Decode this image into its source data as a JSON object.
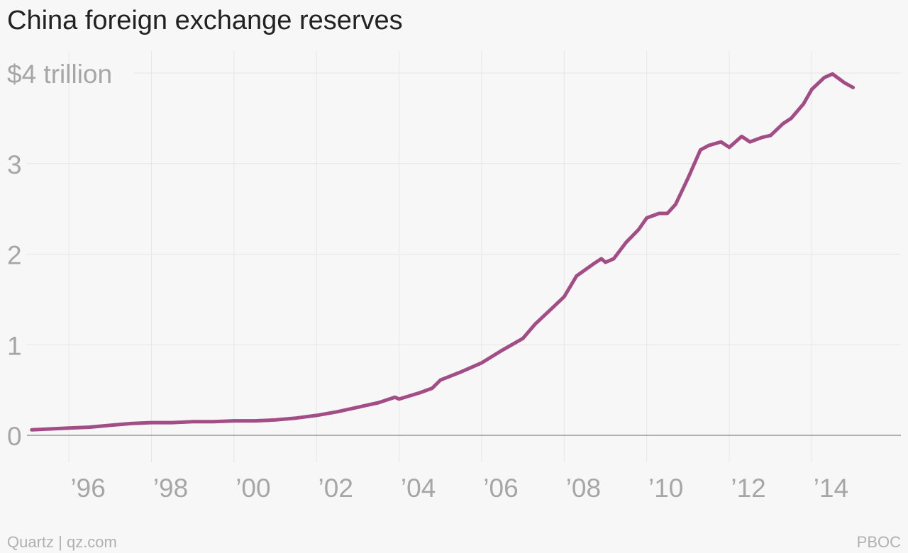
{
  "chart_data": {
    "type": "line",
    "title": "China foreign exchange reserves",
    "xlabel": "",
    "ylabel": "",
    "y_unit_label": "$4 trillion",
    "x_tick_labels": [
      {
        "year": 1996,
        "label": "’96"
      },
      {
        "year": 1998,
        "label": "’98"
      },
      {
        "year": 2000,
        "label": "’00"
      },
      {
        "year": 2002,
        "label": "’02"
      },
      {
        "year": 2004,
        "label": "’04"
      },
      {
        "year": 2006,
        "label": "’06"
      },
      {
        "year": 2008,
        "label": "’08"
      },
      {
        "year": 2010,
        "label": "’10"
      },
      {
        "year": 2012,
        "label": "’12"
      },
      {
        "year": 2014,
        "label": "’14"
      }
    ],
    "y_tick_labels": [
      {
        "value": 0,
        "label": "0"
      },
      {
        "value": 1,
        "label": "1"
      },
      {
        "value": 2,
        "label": "2"
      },
      {
        "value": 3,
        "label": "3"
      },
      {
        "value": 4,
        "label": "$4 trillion"
      }
    ],
    "xlim": [
      1994.33,
      2016.33
    ],
    "ylim": [
      0,
      4.1
    ],
    "grid": true,
    "line_color": "#a24d85",
    "series": [
      {
        "x": [
          1995.1,
          1995.5,
          1996.0,
          1996.5,
          1997.0,
          1997.5,
          1998.0,
          1998.5,
          1999.0,
          1999.5,
          2000.0,
          2000.5,
          2001.0,
          2001.5,
          2002.0,
          2002.5,
          2003.0,
          2003.5,
          2003.9,
          2004.0,
          2004.5,
          2004.8,
          2005.0,
          2005.5,
          2006.0,
          2006.5,
          2007.0,
          2007.3,
          2007.7,
          2008.0,
          2008.3,
          2008.7,
          2008.9,
          2009.0,
          2009.2,
          2009.5,
          2009.8,
          2010.0,
          2010.3,
          2010.5,
          2010.7,
          2011.0,
          2011.3,
          2011.5,
          2011.8,
          2012.0,
          2012.3,
          2012.5,
          2012.8,
          2013.0,
          2013.3,
          2013.5,
          2013.8,
          2014.0,
          2014.3,
          2014.5,
          2014.8,
          2015.0
        ],
        "values": [
          0.06,
          0.07,
          0.08,
          0.09,
          0.11,
          0.13,
          0.14,
          0.14,
          0.15,
          0.15,
          0.16,
          0.16,
          0.17,
          0.19,
          0.22,
          0.26,
          0.31,
          0.36,
          0.42,
          0.4,
          0.47,
          0.52,
          0.61,
          0.7,
          0.8,
          0.94,
          1.07,
          1.23,
          1.4,
          1.53,
          1.76,
          1.89,
          1.95,
          1.91,
          1.95,
          2.13,
          2.27,
          2.4,
          2.45,
          2.45,
          2.55,
          2.84,
          3.15,
          3.2,
          3.24,
          3.18,
          3.3,
          3.24,
          3.29,
          3.31,
          3.44,
          3.5,
          3.66,
          3.82,
          3.95,
          3.99,
          3.89,
          3.84
        ]
      }
    ]
  },
  "footer": {
    "left": "Quartz | qz.com",
    "right": "PBOC"
  }
}
